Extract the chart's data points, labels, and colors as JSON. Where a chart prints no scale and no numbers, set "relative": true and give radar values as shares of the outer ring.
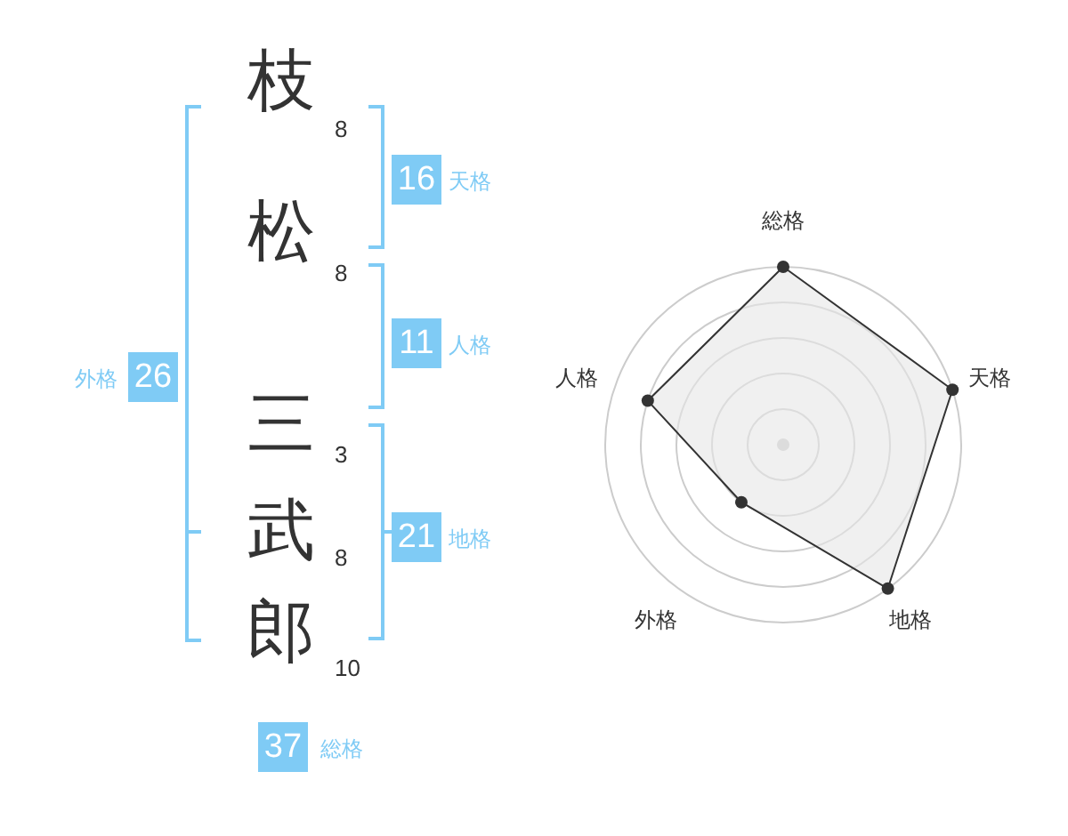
{
  "chart_data": [
    {
      "type": "other",
      "categories": [
        "枝",
        "松",
        "三",
        "武",
        "郎"
      ],
      "values": [
        8,
        8,
        3,
        8,
        10
      ],
      "data_labels": true,
      "color": "#7fcbf5",
      "annotations": [
        "16",
        "天格",
        "11",
        "人格",
        "21",
        "地格",
        "26",
        "外格",
        "37",
        "総格"
      ]
    },
    {
      "type": "radar",
      "categories": [
        "総格",
        "天格",
        "地格",
        "外格",
        "人格"
      ],
      "relative": true,
      "grid": true,
      "marker": "circle",
      "series": [
        {
          "color": "#333333",
          "values": [
            1,
            1,
            1,
            0.4,
            0.8
          ]
        }
      ]
    }
  ]
}
